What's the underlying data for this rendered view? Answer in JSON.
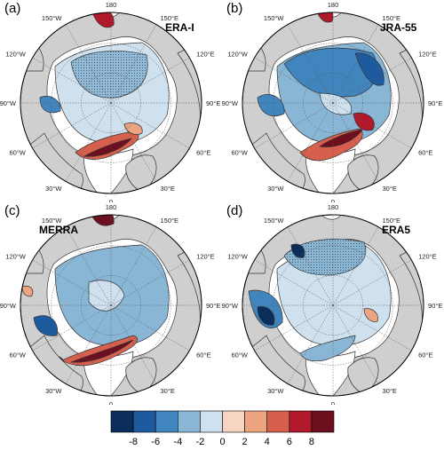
{
  "panels": [
    {
      "label": "(a)",
      "name": "ERA-I"
    },
    {
      "label": "(b)",
      "name": "JRA-55"
    },
    {
      "label": "(c)",
      "name": "MERRA"
    },
    {
      "label": "(d)",
      "name": "ERA5"
    }
  ],
  "longitude_labels": [
    "180",
    "150°E",
    "120°E",
    "90°E",
    "60°E",
    "30°E",
    "0",
    "30°W",
    "60°W",
    "90°W",
    "120°W",
    "150°W"
  ],
  "colorbar": {
    "ticks": [
      "-8",
      "-6",
      "-4",
      "-2",
      "0",
      "2",
      "4",
      "6",
      "8"
    ],
    "colors": [
      "#0a2d5c",
      "#1e5a9e",
      "#4185be",
      "#8ab6d6",
      "#cfe0ee",
      "#f6d6c2",
      "#eda481",
      "#d6604d",
      "#b2182b",
      "#6d0f1f"
    ]
  },
  "colors": {
    "land": "#cfcfcf",
    "ocean": "#ffffff",
    "coast": "#333333",
    "grid": "#555555"
  }
}
